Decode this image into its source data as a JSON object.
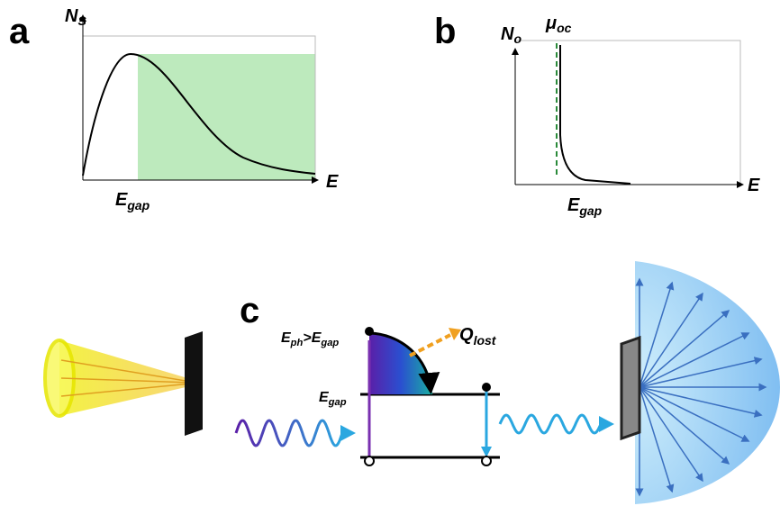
{
  "panels": [
    {
      "label": "a",
      "y_axis_label": [
        "N",
        "S"
      ],
      "x_axis_label": "E",
      "marker_label": [
        "E",
        "gap"
      ]
    },
    {
      "label": "b",
      "y_axis_label": [
        "N",
        "o"
      ],
      "line_label": [
        "μ",
        "oc"
      ],
      "x_axis_label": "E",
      "marker_label": [
        "E",
        "gap"
      ]
    },
    {
      "label": "c",
      "photon_label": [
        "E",
        "ph",
        ">",
        "E",
        "gap"
      ],
      "heat_label": [
        "Q",
        "lost"
      ],
      "gap_label": [
        "E",
        "gap"
      ]
    }
  ]
}
